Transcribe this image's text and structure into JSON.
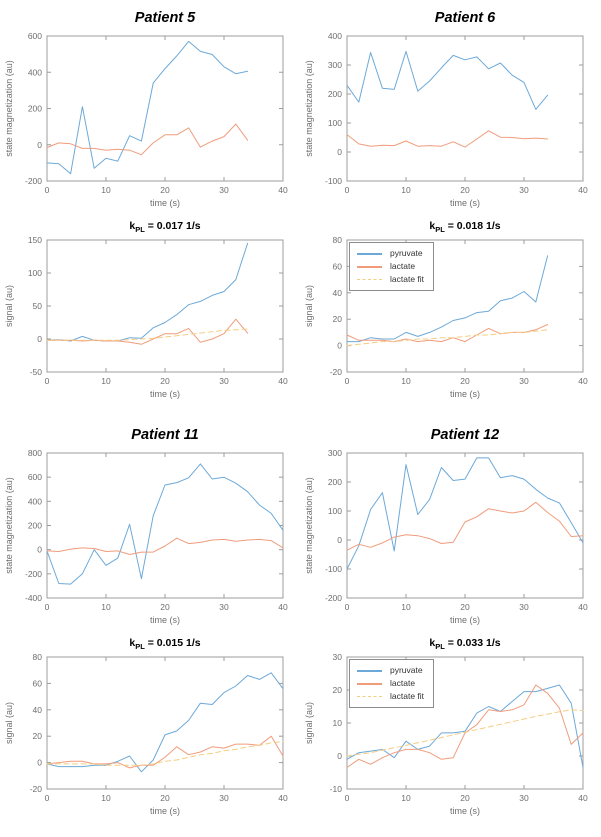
{
  "palette": {
    "pyruvate": "#6da9d8",
    "lactate": "#f09c7c",
    "lactate_fit": "#f5cd82",
    "axis": "#9c9c9c",
    "tick_text": "#6e6e6e"
  },
  "legend": {
    "items": [
      {
        "label": "pyruvate"
      },
      {
        "label": "lactate"
      },
      {
        "label": "lactate fit"
      }
    ]
  },
  "chart_data": [
    {
      "type": "line",
      "title": "Patient 5",
      "xlabel": "time (s)",
      "ylabel": "state magnetization (au)",
      "xlim": [
        0,
        40
      ],
      "ylim": [
        -200,
        600
      ],
      "xticks": [
        0,
        10,
        20,
        30,
        40
      ],
      "yticks": [
        -200,
        0,
        200,
        400,
        600
      ],
      "grid": false,
      "legend_visible": false,
      "x": [
        0,
        2,
        4,
        6,
        8,
        10,
        12,
        14,
        16,
        18,
        20,
        22,
        24,
        26,
        28,
        30,
        32,
        34
      ],
      "series": [
        {
          "name": "pyruvate",
          "style": "solid",
          "values": [
            -100,
            -105,
            -160,
            210,
            -130,
            -75,
            -90,
            50,
            20,
            340,
            420,
            490,
            570,
            515,
            498,
            430,
            392,
            405
          ]
        },
        {
          "name": "lactate",
          "style": "solid",
          "values": [
            -15,
            10,
            5,
            -20,
            -20,
            -30,
            -25,
            -30,
            -55,
            10,
            55,
            55,
            93,
            -13,
            20,
            45,
            114,
            25
          ]
        }
      ]
    },
    {
      "type": "line",
      "title": "Patient 6",
      "xlabel": "time (s)",
      "ylabel": "state magnetization (au)",
      "xlim": [
        0,
        40
      ],
      "ylim": [
        -100,
        400
      ],
      "xticks": [
        0,
        10,
        20,
        30,
        40
      ],
      "yticks": [
        -100,
        0,
        100,
        200,
        300,
        400
      ],
      "grid": false,
      "legend_visible": false,
      "x": [
        0,
        2,
        4,
        6,
        8,
        10,
        12,
        14,
        16,
        18,
        20,
        22,
        24,
        26,
        28,
        30,
        32,
        34
      ],
      "series": [
        {
          "name": "pyruvate",
          "style": "solid",
          "values": [
            230,
            172,
            343,
            220,
            216,
            347,
            210,
            245,
            290,
            333,
            318,
            328,
            287,
            307,
            265,
            240,
            147,
            196
          ]
        },
        {
          "name": "lactate",
          "style": "solid",
          "values": [
            60,
            28,
            20,
            23,
            22,
            38,
            20,
            22,
            20,
            35,
            17,
            45,
            73,
            51,
            50,
            46,
            48,
            45
          ]
        }
      ]
    },
    {
      "type": "line",
      "title": "k_PL = 0.017 1/s",
      "title_base": "k",
      "title_sub": "PL",
      "title_suffix": " = 0.017 1/s",
      "xlabel": "time (s)",
      "ylabel": "signal (au)",
      "xlim": [
        0,
        40
      ],
      "ylim": [
        -50,
        150
      ],
      "xticks": [
        0,
        10,
        20,
        30,
        40
      ],
      "yticks": [
        -50,
        0,
        50,
        100,
        150
      ],
      "grid": false,
      "legend_visible": false,
      "x": [
        0,
        2,
        4,
        6,
        8,
        10,
        12,
        14,
        16,
        18,
        20,
        22,
        24,
        26,
        28,
        30,
        32,
        34
      ],
      "series": [
        {
          "name": "pyruvate",
          "style": "solid",
          "values": [
            -2,
            -1,
            -3,
            4,
            -2,
            -3,
            -3,
            2,
            1,
            17,
            25,
            37,
            52,
            57,
            66,
            72,
            90,
            145
          ]
        },
        {
          "name": "lactate",
          "style": "solid",
          "values": [
            -2,
            -2,
            -2,
            -3,
            -2,
            -3,
            -3,
            -5,
            -8,
            0,
            8,
            8,
            16,
            -5,
            0,
            8,
            30,
            9
          ]
        },
        {
          "name": "lactate fit",
          "style": "dashed",
          "values": [
            -2,
            -2,
            -2,
            -2,
            -2,
            -2,
            -2,
            -1,
            0,
            1,
            3,
            5,
            7,
            9,
            11,
            13,
            14,
            15
          ]
        }
      ]
    },
    {
      "type": "line",
      "title": "k_PL = 0.018 1/s",
      "title_base": "k",
      "title_sub": "PL",
      "title_suffix": " = 0.018 1/s",
      "xlabel": "time (s)",
      "ylabel": "signal (au)",
      "xlim": [
        0,
        40
      ],
      "ylim": [
        -20,
        80
      ],
      "xticks": [
        0,
        10,
        20,
        30,
        40
      ],
      "yticks": [
        -20,
        0,
        20,
        40,
        60,
        80
      ],
      "grid": false,
      "legend_visible": true,
      "legend_position": "top-left",
      "x": [
        0,
        2,
        4,
        6,
        8,
        10,
        12,
        14,
        16,
        18,
        20,
        22,
        24,
        26,
        28,
        30,
        32,
        34
      ],
      "series": [
        {
          "name": "pyruvate",
          "style": "solid",
          "values": [
            3,
            3,
            6,
            5,
            5,
            10,
            7,
            10,
            14,
            19,
            21,
            25,
            26,
            34,
            36,
            41,
            33,
            68
          ]
        },
        {
          "name": "lactate",
          "style": "solid",
          "values": [
            8,
            4,
            4,
            4,
            3,
            5,
            3,
            4,
            3,
            6,
            3,
            8,
            13,
            9,
            10,
            10,
            12,
            16
          ]
        },
        {
          "name": "lactate fit",
          "style": "dashed",
          "values": [
            0,
            1,
            2,
            3,
            3,
            4,
            5,
            5,
            6,
            6,
            7,
            8,
            8,
            9,
            10,
            10,
            11,
            12
          ]
        }
      ]
    },
    {
      "type": "line",
      "title": "Patient 11",
      "xlabel": "time (s)",
      "ylabel": "state magnetization (au)",
      "xlim": [
        0,
        40
      ],
      "ylim": [
        -400,
        800
      ],
      "xticks": [
        0,
        10,
        20,
        30,
        40
      ],
      "yticks": [
        -400,
        -200,
        0,
        200,
        400,
        600,
        800
      ],
      "grid": false,
      "legend_visible": false,
      "x": [
        0,
        2,
        4,
        6,
        8,
        10,
        12,
        14,
        16,
        18,
        20,
        22,
        24,
        26,
        28,
        30,
        32,
        34,
        36,
        38,
        40
      ],
      "series": [
        {
          "name": "pyruvate",
          "style": "solid",
          "values": [
            -10,
            -280,
            -285,
            -200,
            0,
            -130,
            -70,
            210,
            -240,
            280,
            535,
            555,
            595,
            710,
            585,
            600,
            550,
            480,
            370,
            300,
            160
          ]
        },
        {
          "name": "lactate",
          "style": "solid",
          "values": [
            -10,
            -15,
            5,
            15,
            10,
            -15,
            -10,
            -40,
            -20,
            -20,
            30,
            95,
            50,
            60,
            80,
            85,
            70,
            80,
            85,
            75,
            15
          ]
        }
      ]
    },
    {
      "type": "line",
      "title": "Patient 12",
      "xlabel": "time (s)",
      "ylabel": "state magnetization (au)",
      "xlim": [
        0,
        40
      ],
      "ylim": [
        -200,
        300
      ],
      "xticks": [
        0,
        10,
        20,
        30,
        40
      ],
      "yticks": [
        -200,
        -100,
        0,
        100,
        200,
        300
      ],
      "grid": false,
      "legend_visible": false,
      "x": [
        0,
        2,
        4,
        6,
        8,
        10,
        12,
        14,
        16,
        18,
        20,
        22,
        24,
        26,
        28,
        30,
        32,
        34,
        36,
        38,
        40
      ],
      "series": [
        {
          "name": "pyruvate",
          "style": "solid",
          "values": [
            -100,
            -20,
            105,
            163,
            -38,
            260,
            88,
            140,
            250,
            205,
            210,
            283,
            283,
            215,
            222,
            210,
            175,
            145,
            128,
            60,
            -10
          ]
        },
        {
          "name": "lactate",
          "style": "solid",
          "values": [
            -35,
            -15,
            -25,
            -10,
            10,
            18,
            15,
            5,
            -12,
            -8,
            62,
            80,
            108,
            100,
            93,
            100,
            130,
            95,
            65,
            12,
            15
          ]
        }
      ]
    },
    {
      "type": "line",
      "title": "k_PL = 0.015 1/s",
      "title_base": "k",
      "title_sub": "PL",
      "title_suffix": " = 0.015 1/s",
      "xlabel": "time (s)",
      "ylabel": "signal (au)",
      "xlim": [
        0,
        40
      ],
      "ylim": [
        -20,
        80
      ],
      "xticks": [
        0,
        10,
        20,
        30,
        40
      ],
      "yticks": [
        -20,
        0,
        20,
        40,
        60,
        80
      ],
      "grid": false,
      "legend_visible": false,
      "x": [
        0,
        2,
        4,
        6,
        8,
        10,
        12,
        14,
        16,
        18,
        20,
        22,
        24,
        26,
        28,
        30,
        32,
        34,
        36,
        38,
        40
      ],
      "series": [
        {
          "name": "pyruvate",
          "style": "solid",
          "values": [
            -1,
            -3,
            -3,
            -3,
            -2,
            -2,
            1,
            5,
            -7,
            2,
            21,
            24,
            32,
            45,
            44,
            53,
            58,
            66,
            63,
            68,
            56
          ]
        },
        {
          "name": "lactate",
          "style": "solid",
          "values": [
            -1,
            0,
            1,
            1,
            -1,
            -1,
            0,
            -4,
            -2,
            -2,
            4,
            12,
            6,
            8,
            12,
            11,
            14,
            14,
            13,
            20,
            5
          ]
        },
        {
          "name": "lactate fit",
          "style": "dashed",
          "values": [
            -1,
            -1,
            -1,
            -1,
            -1,
            -2,
            -2,
            -2,
            -2,
            -1,
            1,
            2,
            4,
            6,
            7,
            9,
            10,
            12,
            13,
            15,
            16
          ]
        }
      ]
    },
    {
      "type": "line",
      "title": "k_PL = 0.033 1/s",
      "title_base": "k",
      "title_sub": "PL",
      "title_suffix": " = 0.033 1/s",
      "xlabel": "time (s)",
      "ylabel": "signal (au)",
      "xlim": [
        0,
        40
      ],
      "ylim": [
        -10,
        30
      ],
      "xticks": [
        0,
        10,
        20,
        30,
        40
      ],
      "yticks": [
        -10,
        0,
        10,
        20,
        30
      ],
      "grid": false,
      "legend_visible": true,
      "legend_position": "top-left",
      "x": [
        0,
        2,
        4,
        6,
        8,
        10,
        12,
        14,
        16,
        18,
        20,
        22,
        24,
        26,
        28,
        30,
        32,
        34,
        36,
        38,
        40
      ],
      "series": [
        {
          "name": "pyruvate",
          "style": "solid",
          "values": [
            -1,
            1,
            1.5,
            2,
            -0.5,
            4.5,
            2,
            3,
            7,
            7,
            7.5,
            13,
            15,
            13.5,
            16.5,
            19.5,
            19.5,
            20.5,
            21.5,
            16,
            -3.5
          ]
        },
        {
          "name": "lactate",
          "style": "solid",
          "values": [
            -3.5,
            -1,
            -2.5,
            -0.5,
            1,
            2,
            2,
            1,
            -1,
            -0.5,
            7,
            9.5,
            14,
            13.5,
            14,
            15.5,
            21.5,
            19,
            14.5,
            3.5,
            7
          ]
        },
        {
          "name": "lactate fit",
          "style": "dashed",
          "values": [
            0,
            0.5,
            1,
            1.8,
            2.5,
            3.2,
            4,
            4.8,
            5.6,
            6.4,
            7.2,
            8,
            8.8,
            9.6,
            10.4,
            11.2,
            12,
            12.7,
            13.4,
            14,
            13.8
          ]
        }
      ]
    }
  ]
}
